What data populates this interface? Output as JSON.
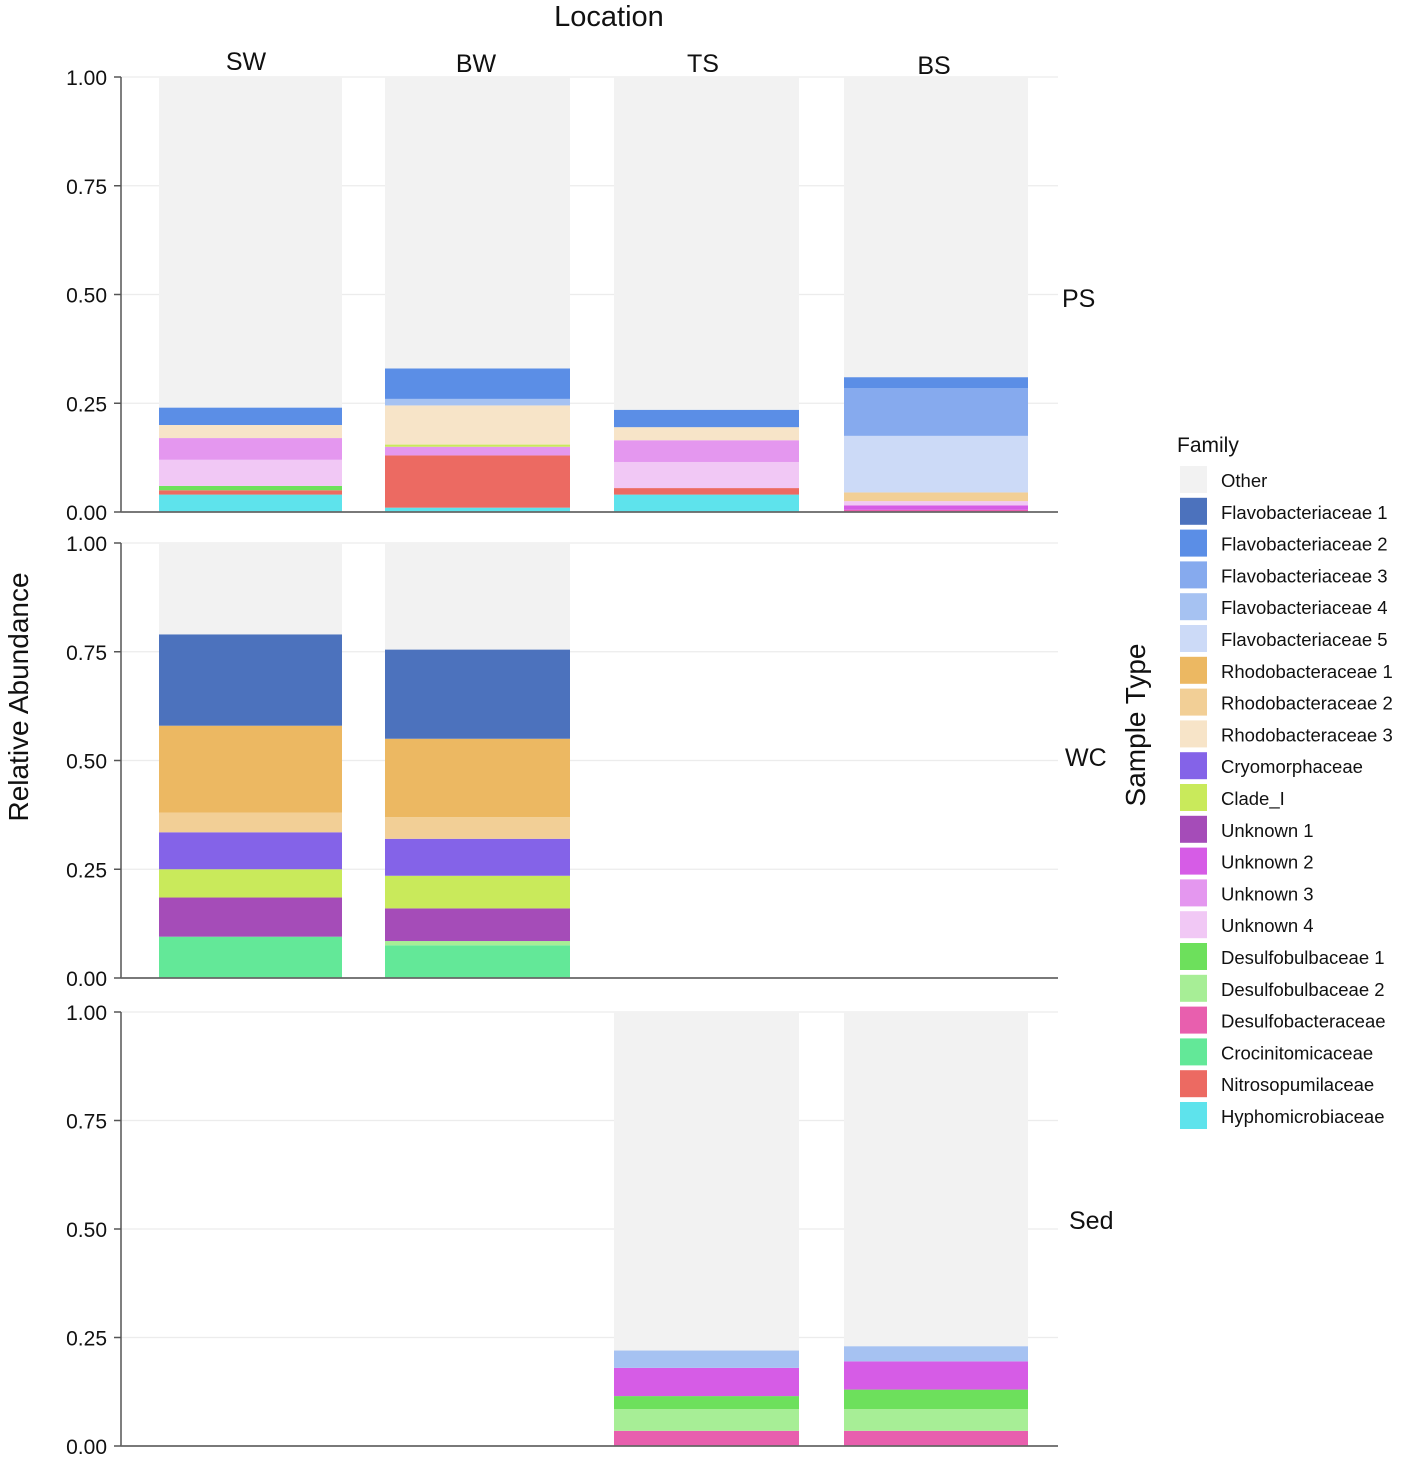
{
  "chart_data": {
    "type": "bar",
    "stacked": true,
    "title": "Location",
    "ylabel": "Relative Abundance",
    "row_strip_label": "Sample Type",
    "ylim": [
      0,
      1
    ],
    "yticks": [
      "1.00",
      "0.75",
      "0.50",
      "0.25",
      "0.00"
    ],
    "columns": [
      "SW",
      "BW",
      "TS",
      "BS"
    ],
    "rows": [
      "PS",
      "WC",
      "Sed"
    ],
    "legend_title": "Family",
    "families": [
      {
        "name": "Other",
        "color": "#f2f2f2"
      },
      {
        "name": "Flavobacteriaceae 1",
        "color": "#4c72bd"
      },
      {
        "name": "Flavobacteriaceae 2",
        "color": "#5b8ee6"
      },
      {
        "name": "Flavobacteriaceae 3",
        "color": "#86aaee"
      },
      {
        "name": "Flavobacteriaceae 4",
        "color": "#a6c2f2"
      },
      {
        "name": "Flavobacteriaceae 5",
        "color": "#ccdaf7"
      },
      {
        "name": "Rhodobacteraceae 1",
        "color": "#ecb862"
      },
      {
        "name": "Rhodobacteraceae 2",
        "color": "#f2cf96"
      },
      {
        "name": "Rhodobacteraceae 3",
        "color": "#f7e4c8"
      },
      {
        "name": "Cryomorphaceae",
        "color": "#8463e8"
      },
      {
        "name": "Clade_I",
        "color": "#c9ea5b"
      },
      {
        "name": "Unknown 1",
        "color": "#a54cb8"
      },
      {
        "name": "Unknown 2",
        "color": "#d65ce6"
      },
      {
        "name": "Unknown 3",
        "color": "#e497ef"
      },
      {
        "name": "Unknown 4",
        "color": "#f1c8f5"
      },
      {
        "name": "Desulfobulbaceae 1",
        "color": "#6de05c"
      },
      {
        "name": "Desulfobulbaceae 2",
        "color": "#a7ee96"
      },
      {
        "name": "Desulfobacteraceae",
        "color": "#e85fae"
      },
      {
        "name": "Crocinitomicaceae",
        "color": "#63e898"
      },
      {
        "name": "Nitrosopumilaceae",
        "color": "#ec6a62"
      },
      {
        "name": "Hyphomicrobiaceae",
        "color": "#5ee3ec"
      }
    ],
    "bars": [
      {
        "row": "PS",
        "column": "SW",
        "segments": [
          {
            "family": "Hyphomicrobiaceae",
            "value": 0.04
          },
          {
            "family": "Nitrosopumilaceae",
            "value": 0.01
          },
          {
            "family": "Desulfobulbaceae 1",
            "value": 0.01
          },
          {
            "family": "Unknown 4",
            "value": 0.06
          },
          {
            "family": "Unknown 3",
            "value": 0.05
          },
          {
            "family": "Rhodobacteraceae 3",
            "value": 0.03
          },
          {
            "family": "Flavobacteriaceae 2",
            "value": 0.04
          },
          {
            "family": "Other",
            "value": 0.76
          }
        ]
      },
      {
        "row": "PS",
        "column": "BW",
        "segments": [
          {
            "family": "Hyphomicrobiaceae",
            "value": 0.01
          },
          {
            "family": "Nitrosopumilaceae",
            "value": 0.12
          },
          {
            "family": "Unknown 3",
            "value": 0.02
          },
          {
            "family": "Clade_I",
            "value": 0.005
          },
          {
            "family": "Rhodobacteraceae 3",
            "value": 0.09
          },
          {
            "family": "Flavobacteriaceae 4",
            "value": 0.015
          },
          {
            "family": "Flavobacteriaceae 2",
            "value": 0.07
          },
          {
            "family": "Other",
            "value": 0.67
          }
        ]
      },
      {
        "row": "PS",
        "column": "TS",
        "segments": [
          {
            "family": "Hyphomicrobiaceae",
            "value": 0.04
          },
          {
            "family": "Nitrosopumilaceae",
            "value": 0.015
          },
          {
            "family": "Unknown 4",
            "value": 0.06
          },
          {
            "family": "Unknown 3",
            "value": 0.05
          },
          {
            "family": "Rhodobacteraceae 3",
            "value": 0.03
          },
          {
            "family": "Flavobacteriaceae 2",
            "value": 0.04
          },
          {
            "family": "Other",
            "value": 0.765
          }
        ]
      },
      {
        "row": "PS",
        "column": "BS",
        "segments": [
          {
            "family": "Desulfobacteraceae",
            "value": 0.005
          },
          {
            "family": "Unknown 2",
            "value": 0.01
          },
          {
            "family": "Unknown 4",
            "value": 0.01
          },
          {
            "family": "Rhodobacteraceae 2",
            "value": 0.02
          },
          {
            "family": "Flavobacteriaceae 5",
            "value": 0.13
          },
          {
            "family": "Flavobacteriaceae 3",
            "value": 0.11
          },
          {
            "family": "Flavobacteriaceae 2",
            "value": 0.025
          },
          {
            "family": "Other",
            "value": 0.69
          }
        ]
      },
      {
        "row": "WC",
        "column": "SW",
        "segments": [
          {
            "family": "Crocinitomicaceae",
            "value": 0.095
          },
          {
            "family": "Unknown 1",
            "value": 0.09
          },
          {
            "family": "Clade_I",
            "value": 0.065
          },
          {
            "family": "Cryomorphaceae",
            "value": 0.085
          },
          {
            "family": "Rhodobacteraceae 2",
            "value": 0.045
          },
          {
            "family": "Rhodobacteraceae 1",
            "value": 0.2
          },
          {
            "family": "Flavobacteriaceae 1",
            "value": 0.21
          },
          {
            "family": "Other",
            "value": 0.21
          }
        ]
      },
      {
        "row": "WC",
        "column": "BW",
        "segments": [
          {
            "family": "Crocinitomicaceae",
            "value": 0.075
          },
          {
            "family": "Desulfobulbaceae 2",
            "value": 0.01
          },
          {
            "family": "Unknown 1",
            "value": 0.075
          },
          {
            "family": "Clade_I",
            "value": 0.075
          },
          {
            "family": "Cryomorphaceae",
            "value": 0.085
          },
          {
            "family": "Rhodobacteraceae 2",
            "value": 0.05
          },
          {
            "family": "Rhodobacteraceae 1",
            "value": 0.18
          },
          {
            "family": "Flavobacteriaceae 1",
            "value": 0.205
          },
          {
            "family": "Other",
            "value": 0.245
          }
        ]
      },
      {
        "row": "Sed",
        "column": "TS",
        "segments": [
          {
            "family": "Desulfobacteraceae",
            "value": 0.035
          },
          {
            "family": "Desulfobulbaceae 2",
            "value": 0.05
          },
          {
            "family": "Desulfobulbaceae 1",
            "value": 0.03
          },
          {
            "family": "Unknown 2",
            "value": 0.065
          },
          {
            "family": "Flavobacteriaceae 4",
            "value": 0.04
          },
          {
            "family": "Other",
            "value": 0.78
          }
        ]
      },
      {
        "row": "Sed",
        "column": "BS",
        "segments": [
          {
            "family": "Desulfobacteraceae",
            "value": 0.035
          },
          {
            "family": "Desulfobulbaceae 2",
            "value": 0.05
          },
          {
            "family": "Desulfobulbaceae 1",
            "value": 0.045
          },
          {
            "family": "Unknown 2",
            "value": 0.065
          },
          {
            "family": "Flavobacteriaceae 4",
            "value": 0.035
          },
          {
            "family": "Other",
            "value": 0.77
          }
        ]
      }
    ]
  }
}
